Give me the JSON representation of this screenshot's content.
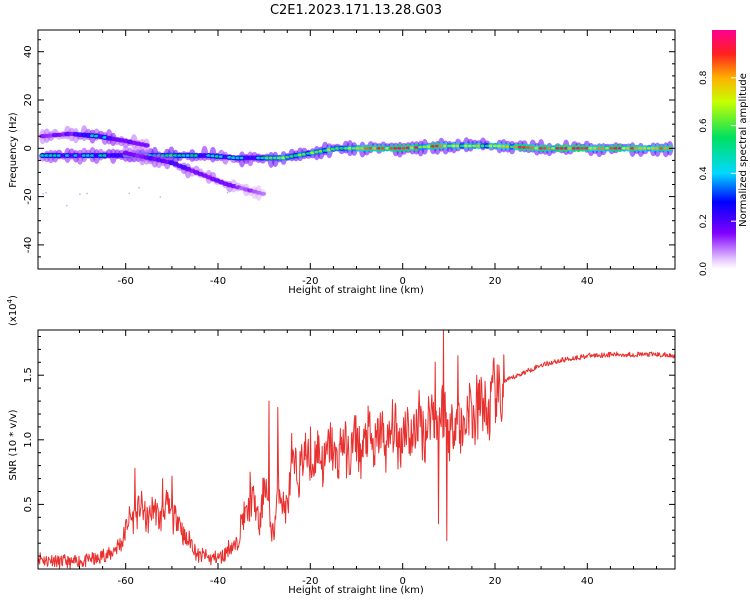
{
  "title": "C2E1.2023.171.13.28.G03",
  "chart_data": [
    {
      "type": "heatmap",
      "xlabel": "Height of straight line (km)",
      "ylabel": "Frequency (Hz)",
      "xlim": [
        -79,
        59
      ],
      "ylim": [
        -50,
        49
      ],
      "xticks": [
        -60,
        -40,
        -20,
        0,
        20,
        40
      ],
      "yticks": [
        -40,
        -20,
        0,
        20,
        40
      ],
      "colorbar": {
        "label": "Normalized spectral amplitude",
        "ticks": [
          "0.0",
          "0.2",
          "0.4",
          "0.6",
          "0.8"
        ],
        "range": [
          0,
          1
        ],
        "colormap": "rainbow (white-violet-blue-cyan-green-yellow-orange-red-magenta)"
      },
      "ridges": [
        {
          "x": [
            -78,
            -70,
            -62,
            -55,
            -48,
            -42,
            -36,
            -30,
            -26,
            -20,
            -14,
            -8,
            0,
            8,
            14,
            20,
            30,
            40,
            50,
            58
          ],
          "y": [
            -3,
            -3,
            -3,
            -3,
            -3,
            -3,
            -4,
            -4,
            -4,
            -2,
            0,
            0,
            0,
            1,
            1,
            1,
            0,
            0,
            0,
            0
          ],
          "amplitude": [
            0.5,
            0.45,
            0.55,
            0.6,
            0.6,
            0.5,
            0.5,
            0.55,
            0.8,
            0.7,
            0.75,
            0.85,
            0.95,
            0.85,
            0.7,
            0.75,
            0.95,
            0.95,
            0.95,
            0.9
          ]
        },
        {
          "x": [
            -78,
            -72,
            -66,
            -60,
            -55
          ],
          "y": [
            5,
            6,
            5,
            3,
            1
          ],
          "amplitude": [
            0.3,
            0.35,
            0.5,
            0.4,
            0.3
          ]
        },
        {
          "x": [
            -60,
            -55,
            -50,
            -46,
            -42,
            -38,
            -34,
            -30
          ],
          "y": [
            -2,
            -4,
            -6,
            -9,
            -12,
            -15,
            -17,
            -19
          ],
          "amplitude": [
            0.35,
            0.35,
            0.4,
            0.35,
            0.35,
            0.3,
            0.25,
            0.15
          ]
        }
      ]
    },
    {
      "type": "line",
      "xlabel": "Height of straight line (km)",
      "ylabel": "SNR (10 * v/v)",
      "scale_label": "(x10",
      "scale_exponent": "4",
      "scale_close": ")",
      "xlim": [
        -79,
        59
      ],
      "ylim": [
        0,
        1.85
      ],
      "xticks": [
        -60,
        -40,
        -20,
        0,
        20,
        40
      ],
      "yticks": [
        0.5,
        1.0,
        1.5
      ],
      "ytick_labels": [
        "0.5",
        "1.0",
        "1.5"
      ],
      "color": "#e8302e",
      "series": [
        {
          "x": [
            -79,
            -72,
            -66,
            -62,
            -58,
            -55,
            -50,
            -47,
            -44,
            -40,
            -36,
            -33,
            -31,
            -30,
            -29,
            -28,
            -27,
            -26,
            -25,
            -23,
            -20,
            -15,
            -10,
            -5,
            0,
            4,
            8,
            9,
            12,
            15,
            18,
            20,
            22,
            25,
            30,
            35,
            40,
            45,
            50,
            55,
            59
          ],
          "y": [
            0.08,
            0.05,
            0.08,
            0.15,
            0.45,
            0.42,
            0.45,
            0.25,
            0.1,
            0.08,
            0.2,
            0.55,
            0.35,
            0.7,
            0.4,
            0.3,
            0.6,
            0.5,
            0.55,
            0.8,
            0.85,
            0.9,
            0.95,
            1.0,
            1.05,
            1.1,
            1.2,
            1.15,
            1.12,
            1.2,
            1.25,
            1.3,
            1.45,
            1.5,
            1.58,
            1.62,
            1.65,
            1.66,
            1.66,
            1.66,
            1.65
          ]
        }
      ],
      "spikes": [
        {
          "x": -58,
          "y": 0.78
        },
        {
          "x": -52,
          "y": 0.7
        },
        {
          "x": -50,
          "y": 0.72
        },
        {
          "x": -33,
          "y": 0.75
        },
        {
          "x": -29,
          "y": 1.3
        },
        {
          "x": -27,
          "y": 1.25
        },
        {
          "x": -24,
          "y": 1.05
        },
        {
          "x": -20,
          "y": 1.1
        },
        {
          "x": 1,
          "y": 1.25
        },
        {
          "x": 7,
          "y": 1.6
        },
        {
          "x": 8.8,
          "y": 1.85
        },
        {
          "x": 7.8,
          "y": 0.35
        },
        {
          "x": 9.5,
          "y": 0.22
        },
        {
          "x": 12,
          "y": 1.65
        },
        {
          "x": 16,
          "y": 1.5
        },
        {
          "x": 19,
          "y": 1.45
        }
      ]
    }
  ]
}
